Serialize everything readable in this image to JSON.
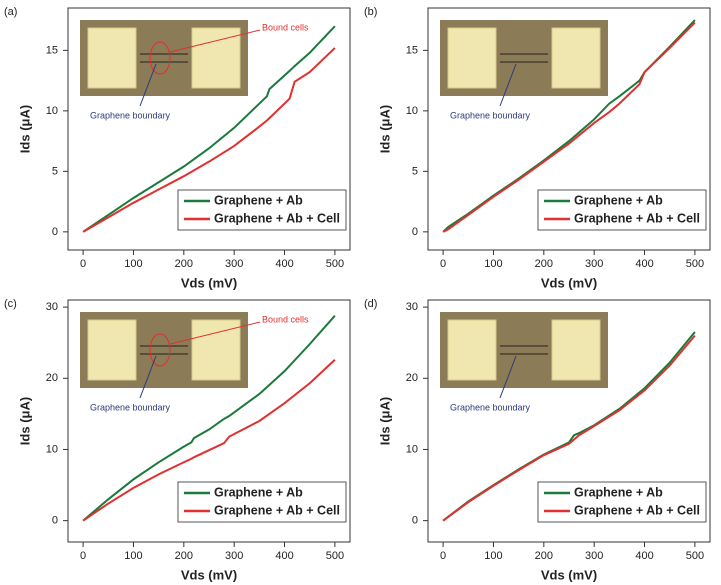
{
  "chart_data": [
    {
      "type": "line",
      "panel": "(a)",
      "xlabel": "Vds (mV)",
      "ylabel": "Ids (μA)",
      "annotations": [
        "Bound cells",
        "Graphene boundary"
      ],
      "x": [
        0,
        50,
        100,
        150,
        200,
        250,
        300,
        350,
        365,
        370,
        410,
        420,
        450,
        500
      ],
      "series": [
        {
          "name": "Graphene + Ab",
          "color": "#1a7a3a",
          "values": [
            0,
            1.4,
            2.8,
            4.1,
            5.4,
            6.9,
            8.6,
            10.6,
            11.2,
            11.8,
            13.3,
            13.7,
            14.8,
            17.0
          ]
        },
        {
          "name": "Graphene + Ab + Cell",
          "color": "#e03030",
          "values": [
            0,
            1.2,
            2.4,
            3.5,
            4.6,
            5.8,
            7.1,
            8.7,
            9.2,
            9.4,
            11.0,
            12.4,
            13.2,
            15.2
          ]
        }
      ],
      "xlim": [
        -30,
        530
      ],
      "ylim": [
        -1.5,
        18.5
      ],
      "xticks": [
        0,
        100,
        200,
        300,
        400,
        500
      ],
      "yticks": [
        0,
        5,
        10,
        15
      ],
      "legend": "lower right"
    },
    {
      "type": "line",
      "panel": "(b)",
      "xlabel": "Vds (mV)",
      "ylabel": "Ids (μA)",
      "annotations": [
        "Graphene boundary"
      ],
      "x": [
        0,
        10,
        50,
        100,
        150,
        200,
        250,
        300,
        330,
        350,
        390,
        400,
        450,
        500
      ],
      "series": [
        {
          "name": "Graphene + Ab",
          "color": "#1a7a3a",
          "values": [
            0,
            0.4,
            1.5,
            3.0,
            4.4,
            5.9,
            7.5,
            9.3,
            10.6,
            11.2,
            12.5,
            13.2,
            15.3,
            17.5
          ]
        },
        {
          "name": "Graphene + Ab + Cell",
          "color": "#e03030",
          "values": [
            0,
            0.2,
            1.4,
            2.9,
            4.3,
            5.8,
            7.3,
            9.0,
            9.9,
            10.6,
            12.2,
            13.2,
            15.2,
            17.3
          ]
        }
      ],
      "xlim": [
        -30,
        530
      ],
      "ylim": [
        -1.5,
        18.5
      ],
      "xticks": [
        0,
        100,
        200,
        300,
        400,
        500
      ],
      "yticks": [
        0,
        5,
        10,
        15
      ],
      "legend": "lower right"
    },
    {
      "type": "line",
      "panel": "(c)",
      "xlabel": "Vds (mV)",
      "ylabel": "Ids (μA)",
      "annotations": [
        "Bound cells",
        "Graphene boundary"
      ],
      "x": [
        0,
        50,
        100,
        150,
        200,
        215,
        220,
        250,
        280,
        290,
        350,
        400,
        450,
        500
      ],
      "series": [
        {
          "name": "Graphene + Ab",
          "color": "#1a7a3a",
          "values": [
            0,
            3.0,
            5.8,
            8.2,
            10.4,
            11.0,
            11.6,
            12.8,
            14.3,
            14.7,
            17.8,
            21.0,
            24.8,
            28.8
          ]
        },
        {
          "name": "Graphene + Ab + Cell",
          "color": "#e03030",
          "values": [
            0,
            2.4,
            4.6,
            6.5,
            8.2,
            8.7,
            8.9,
            9.9,
            10.9,
            11.8,
            14.0,
            16.5,
            19.3,
            22.6
          ]
        }
      ],
      "xlim": [
        -30,
        530
      ],
      "ylim": [
        -3,
        31
      ],
      "xticks": [
        0,
        100,
        200,
        300,
        400,
        500
      ],
      "yticks": [
        0,
        10,
        20,
        30
      ],
      "legend": "lower right"
    },
    {
      "type": "line",
      "panel": "(d)",
      "xlabel": "Vds (mV)",
      "ylabel": "Ids (μA)",
      "annotations": [
        "Graphene boundary"
      ],
      "x": [
        0,
        50,
        100,
        150,
        200,
        250,
        260,
        270,
        300,
        350,
        400,
        450,
        500
      ],
      "series": [
        {
          "name": "Graphene + Ab",
          "color": "#1a7a3a",
          "values": [
            0,
            2.7,
            5.0,
            7.2,
            9.3,
            11.0,
            12.0,
            12.3,
            13.4,
            15.7,
            18.6,
            22.2,
            26.5
          ]
        },
        {
          "name": "Graphene + Ab + Cell",
          "color": "#e03030",
          "values": [
            0,
            2.6,
            4.9,
            7.1,
            9.2,
            10.8,
            11.4,
            12.0,
            13.3,
            15.5,
            18.3,
            21.8,
            26.0
          ]
        }
      ],
      "xlim": [
        -30,
        530
      ],
      "ylim": [
        -3,
        31
      ],
      "xticks": [
        0,
        100,
        200,
        300,
        400,
        500
      ],
      "yticks": [
        0,
        10,
        20,
        30
      ],
      "legend": "lower right"
    }
  ]
}
